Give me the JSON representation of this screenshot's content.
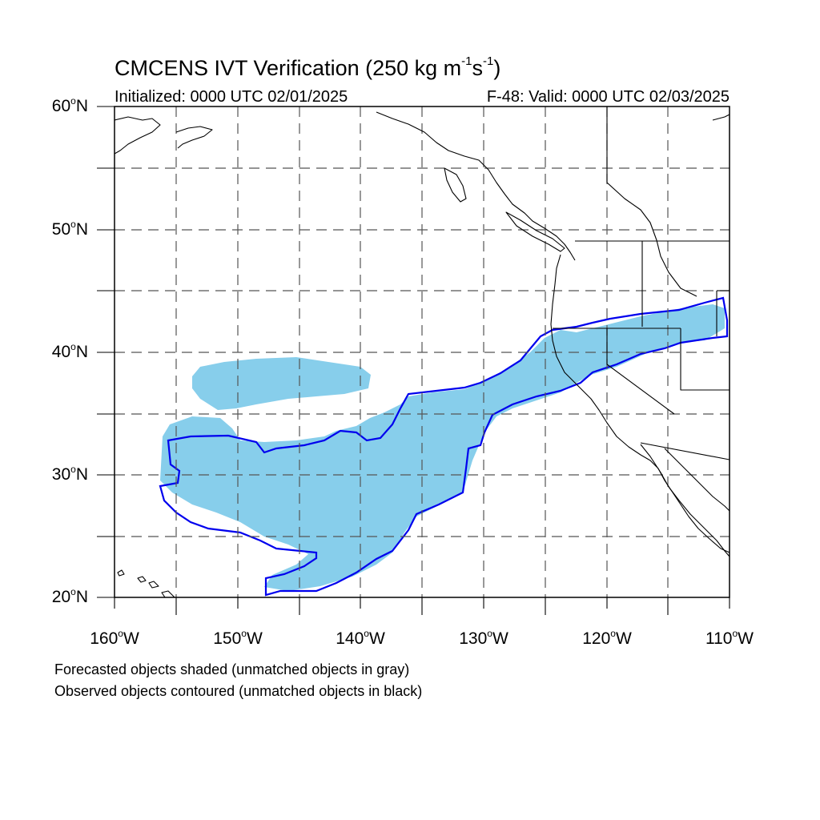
{
  "figure": {
    "title_main": "CMCENS IVT Verification (250 kg m",
    "title_sup1": "-1",
    "title_mid": "s",
    "title_sup2": "-1",
    "title_end": ")",
    "subtitle_left": "Initialized: 0000 UTC 02/01/2025",
    "subtitle_right": "F-48: Valid: 0000 UTC 02/03/2025"
  },
  "axes": {
    "lat_labels": [
      {
        "value": "60",
        "unit": "o",
        "hemi": "N"
      },
      {
        "value": "50",
        "unit": "o",
        "hemi": "N"
      },
      {
        "value": "40",
        "unit": "o",
        "hemi": "N"
      },
      {
        "value": "30",
        "unit": "o",
        "hemi": "N"
      },
      {
        "value": "20",
        "unit": "o",
        "hemi": "N"
      }
    ],
    "lon_labels": [
      {
        "value": "160",
        "unit": "o",
        "hemi": "W"
      },
      {
        "value": "150",
        "unit": "o",
        "hemi": "W"
      },
      {
        "value": "140",
        "unit": "o",
        "hemi": "W"
      },
      {
        "value": "130",
        "unit": "o",
        "hemi": "W"
      },
      {
        "value": "120",
        "unit": "o",
        "hemi": "W"
      },
      {
        "value": "110",
        "unit": "o",
        "hemi": "W"
      }
    ],
    "lat_range": [
      20,
      60
    ],
    "lon_range": [
      -160,
      -110
    ],
    "grid": "dashed, every 5 degrees"
  },
  "legend": {
    "line1": "Forecasted objects shaded (unmatched objects in gray)",
    "line2": "Observed objects contoured (unmatched objects in black)"
  },
  "colors": {
    "forecast_fill": "#87ceeb",
    "observed_contour": "#0000ee",
    "coastline": "#000000",
    "grid": "#555555"
  }
}
